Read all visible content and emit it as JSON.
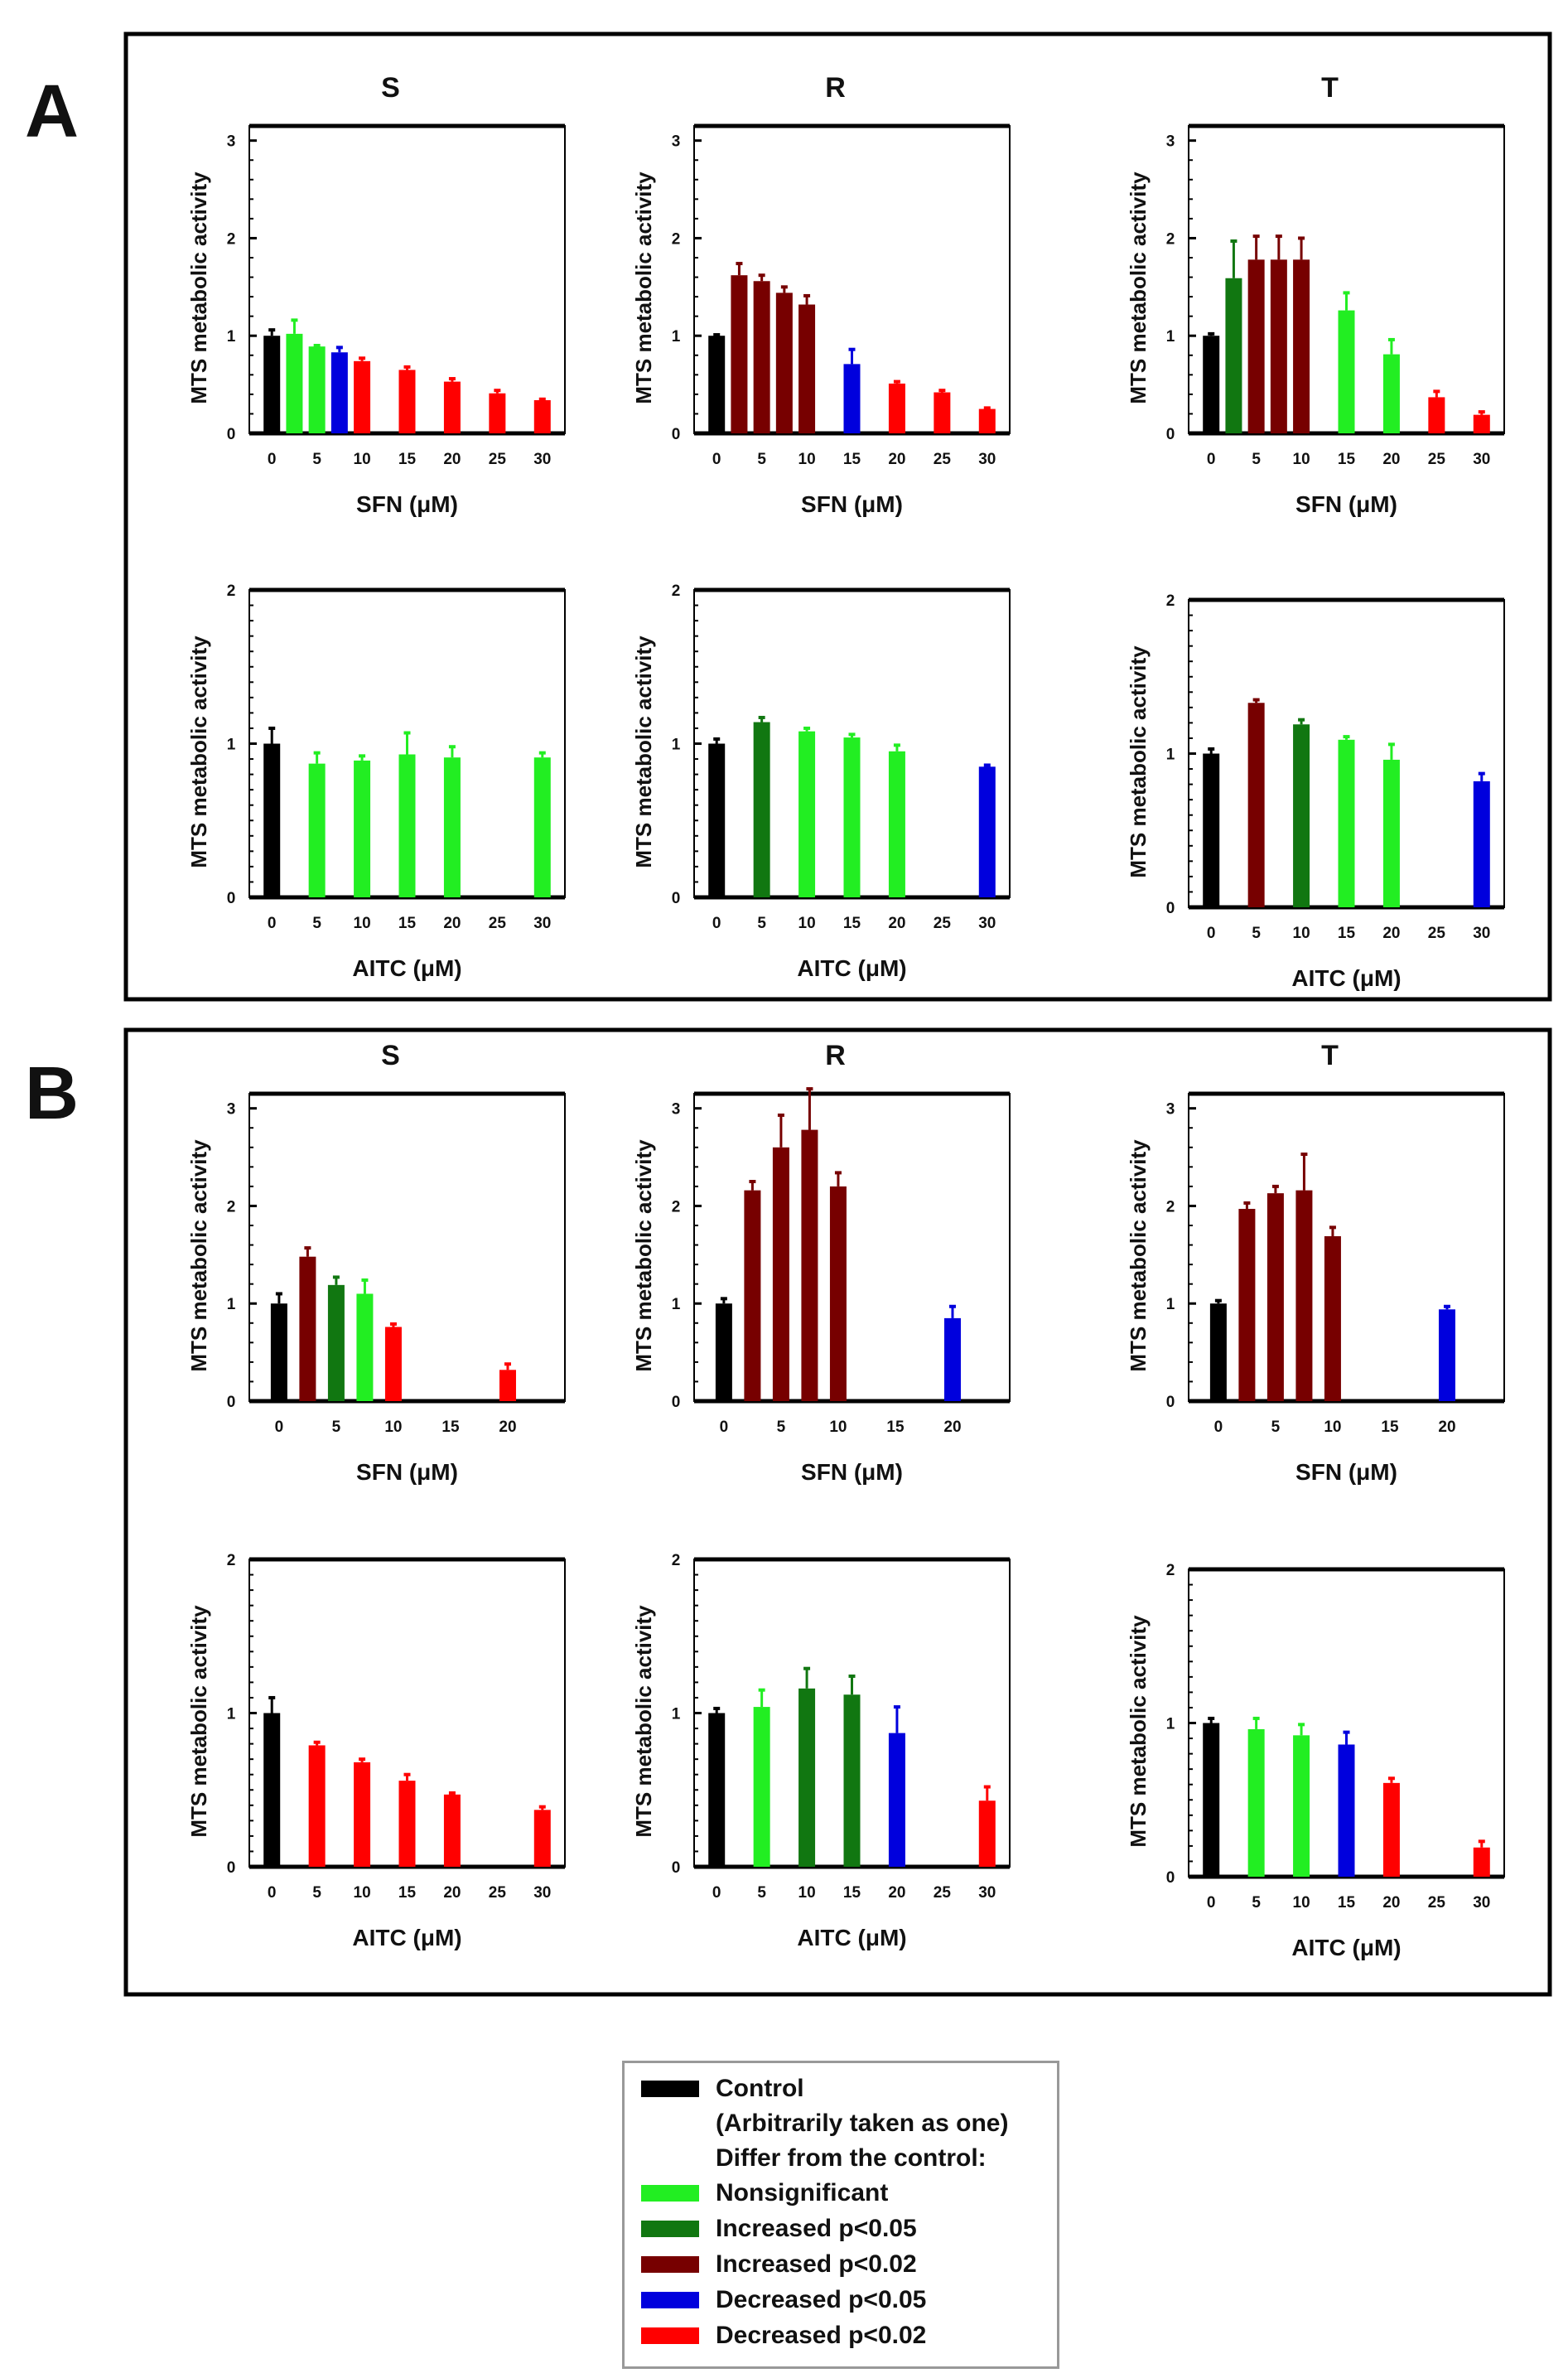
{
  "panel_labels": [
    "A",
    "B"
  ],
  "legend": {
    "title_lines": [
      "Control",
      "(Arbitrarily taken as one)",
      "Differ from the control:"
    ],
    "items": [
      {
        "key": "control",
        "label": "Control",
        "color": "#000000"
      },
      {
        "key": "ns",
        "label": "Nonsignificant",
        "color": "#22ee22"
      },
      {
        "key": "inc05",
        "label": "Increased p<0.05",
        "color": "#117711"
      },
      {
        "key": "inc02",
        "label": "Increased p<0.02",
        "color": "#770000"
      },
      {
        "key": "dec05",
        "label": "Decreased p<0.05",
        "color": "#0000dd"
      },
      {
        "key": "dec02",
        "label": "Decreased p<0.02",
        "color": "#ff0000"
      }
    ]
  },
  "chart_data": [
    {
      "type": "bar",
      "group": "A",
      "title": "S",
      "xlabel": "SFN (μM)",
      "ylabel": "MTS metabolic activity",
      "ylim": [
        0,
        3.15
      ],
      "yticks": [
        "0",
        "1",
        "2",
        "3"
      ],
      "xlim": [
        -2.5,
        32.5
      ],
      "xticks": [
        "0",
        "5",
        "10",
        "15",
        "20",
        "25",
        "30"
      ],
      "bars": [
        {
          "x": 0,
          "value": 1.0,
          "err": 0.06,
          "category": "control"
        },
        {
          "x": 2.5,
          "value": 1.02,
          "err": 0.14,
          "category": "ns"
        },
        {
          "x": 5,
          "value": 0.89,
          "err": 0.01,
          "category": "ns"
        },
        {
          "x": 7.5,
          "value": 0.83,
          "err": 0.05,
          "category": "dec05"
        },
        {
          "x": 10,
          "value": 0.74,
          "err": 0.03,
          "category": "dec02"
        },
        {
          "x": 15,
          "value": 0.65,
          "err": 0.03,
          "category": "dec02"
        },
        {
          "x": 20,
          "value": 0.53,
          "err": 0.03,
          "category": "dec02"
        },
        {
          "x": 25,
          "value": 0.41,
          "err": 0.03,
          "category": "dec02"
        },
        {
          "x": 30,
          "value": 0.34,
          "err": 0.01,
          "category": "dec02"
        }
      ]
    },
    {
      "type": "bar",
      "group": "A",
      "title": "R",
      "xlabel": "SFN (μM)",
      "ylabel": "MTS metabolic activity",
      "ylim": [
        0,
        3.15
      ],
      "yticks": [
        "0",
        "1",
        "2",
        "3"
      ],
      "xlim": [
        -2.5,
        32.5
      ],
      "xticks": [
        "0",
        "5",
        "10",
        "15",
        "20",
        "25",
        "30"
      ],
      "bars": [
        {
          "x": 0,
          "value": 1.0,
          "err": 0.01,
          "category": "control"
        },
        {
          "x": 2.5,
          "value": 1.62,
          "err": 0.12,
          "category": "inc02"
        },
        {
          "x": 5,
          "value": 1.56,
          "err": 0.06,
          "category": "inc02"
        },
        {
          "x": 7.5,
          "value": 1.44,
          "err": 0.06,
          "category": "inc02"
        },
        {
          "x": 10,
          "value": 1.32,
          "err": 0.09,
          "category": "inc02"
        },
        {
          "x": 15,
          "value": 0.71,
          "err": 0.15,
          "category": "dec05"
        },
        {
          "x": 20,
          "value": 0.51,
          "err": 0.02,
          "category": "dec02"
        },
        {
          "x": 25,
          "value": 0.42,
          "err": 0.02,
          "category": "dec02"
        },
        {
          "x": 30,
          "value": 0.25,
          "err": 0.01,
          "category": "dec02"
        }
      ]
    },
    {
      "type": "bar",
      "group": "A",
      "title": "T",
      "xlabel": "SFN (μM)",
      "ylabel": "MTS metabolic activity",
      "ylim": [
        0,
        3.15
      ],
      "yticks": [
        "0",
        "1",
        "2",
        "3"
      ],
      "xlim": [
        -2.5,
        32.5
      ],
      "xticks": [
        "0",
        "5",
        "10",
        "15",
        "20",
        "25",
        "30"
      ],
      "bars": [
        {
          "x": 0,
          "value": 1.0,
          "err": 0.02,
          "category": "control"
        },
        {
          "x": 2.5,
          "value": 1.59,
          "err": 0.38,
          "category": "inc05"
        },
        {
          "x": 5,
          "value": 1.78,
          "err": 0.24,
          "category": "inc02"
        },
        {
          "x": 7.5,
          "value": 1.78,
          "err": 0.24,
          "category": "inc02"
        },
        {
          "x": 10,
          "value": 1.78,
          "err": 0.22,
          "category": "inc02"
        },
        {
          "x": 15,
          "value": 1.26,
          "err": 0.18,
          "category": "ns"
        },
        {
          "x": 20,
          "value": 0.81,
          "err": 0.15,
          "category": "ns"
        },
        {
          "x": 25,
          "value": 0.37,
          "err": 0.06,
          "category": "dec02"
        },
        {
          "x": 30,
          "value": 0.19,
          "err": 0.03,
          "category": "dec02"
        }
      ]
    },
    {
      "type": "bar",
      "group": "A",
      "title": "",
      "xlabel": "AITC (μM)",
      "ylabel": "MTS metabolic activity",
      "ylim": [
        0,
        2
      ],
      "yticks": [
        "0",
        "1",
        "2"
      ],
      "xlim": [
        -2.5,
        32.5
      ],
      "xticks": [
        "0",
        "5",
        "10",
        "15",
        "20",
        "25",
        "30"
      ],
      "bars": [
        {
          "x": 0,
          "value": 1.0,
          "err": 0.1,
          "category": "control"
        },
        {
          "x": 5,
          "value": 0.87,
          "err": 0.07,
          "category": "ns"
        },
        {
          "x": 10,
          "value": 0.89,
          "err": 0.03,
          "category": "ns"
        },
        {
          "x": 15,
          "value": 0.93,
          "err": 0.14,
          "category": "ns"
        },
        {
          "x": 20,
          "value": 0.91,
          "err": 0.07,
          "category": "ns"
        },
        {
          "x": 30,
          "value": 0.91,
          "err": 0.03,
          "category": "ns"
        }
      ]
    },
    {
      "type": "bar",
      "group": "A",
      "title": "",
      "xlabel": "AITC (μM)",
      "ylabel": "MTS metabolic activity",
      "ylim": [
        0,
        2
      ],
      "yticks": [
        "0",
        "1",
        "2"
      ],
      "xlim": [
        -2.5,
        32.5
      ],
      "xticks": [
        "0",
        "5",
        "10",
        "15",
        "20",
        "25",
        "30"
      ],
      "bars": [
        {
          "x": 0,
          "value": 1.0,
          "err": 0.03,
          "category": "control"
        },
        {
          "x": 5,
          "value": 1.14,
          "err": 0.03,
          "category": "inc05"
        },
        {
          "x": 10,
          "value": 1.08,
          "err": 0.02,
          "category": "ns"
        },
        {
          "x": 15,
          "value": 1.04,
          "err": 0.02,
          "category": "ns"
        },
        {
          "x": 20,
          "value": 0.95,
          "err": 0.04,
          "category": "ns"
        },
        {
          "x": 30,
          "value": 0.85,
          "err": 0.01,
          "category": "dec05"
        }
      ]
    },
    {
      "type": "bar",
      "group": "A",
      "title": "",
      "xlabel": "AITC (μM)",
      "ylabel": "MTS metabolic activity",
      "ylim": [
        0,
        2
      ],
      "yticks": [
        "0",
        "1",
        "2"
      ],
      "xlim": [
        -2.5,
        32.5
      ],
      "xticks": [
        "0",
        "5",
        "10",
        "15",
        "20",
        "25",
        "30"
      ],
      "bars": [
        {
          "x": 0,
          "value": 1.0,
          "err": 0.03,
          "category": "control"
        },
        {
          "x": 5,
          "value": 1.33,
          "err": 0.02,
          "category": "inc02"
        },
        {
          "x": 10,
          "value": 1.19,
          "err": 0.03,
          "category": "inc05"
        },
        {
          "x": 15,
          "value": 1.09,
          "err": 0.02,
          "category": "ns"
        },
        {
          "x": 20,
          "value": 0.96,
          "err": 0.1,
          "category": "ns"
        },
        {
          "x": 30,
          "value": 0.82,
          "err": 0.05,
          "category": "dec05"
        }
      ]
    },
    {
      "type": "bar",
      "group": "B",
      "title": "S",
      "xlabel": "SFN (μM)",
      "ylabel": "MTS metabolic activity",
      "ylim": [
        0,
        3.15
      ],
      "yticks": [
        "0",
        "1",
        "2",
        "3"
      ],
      "xlim": [
        -2.6,
        25
      ],
      "xticks": [
        "0",
        "5",
        "10",
        "15",
        "20"
      ],
      "bars": [
        {
          "x": 0,
          "value": 1.0,
          "err": 0.1,
          "category": "control"
        },
        {
          "x": 2.5,
          "value": 1.48,
          "err": 0.09,
          "category": "inc02"
        },
        {
          "x": 5,
          "value": 1.19,
          "err": 0.08,
          "category": "inc05"
        },
        {
          "x": 7.5,
          "value": 1.1,
          "err": 0.14,
          "category": "ns"
        },
        {
          "x": 10,
          "value": 0.76,
          "err": 0.03,
          "category": "dec02"
        },
        {
          "x": 20,
          "value": 0.32,
          "err": 0.06,
          "category": "dec02"
        }
      ]
    },
    {
      "type": "bar",
      "group": "B",
      "title": "R",
      "xlabel": "SFN (μM)",
      "ylabel": "MTS metabolic activity",
      "ylim": [
        0,
        3.15
      ],
      "yticks": [
        "0",
        "1",
        "2",
        "3"
      ],
      "xlim": [
        -2.6,
        25
      ],
      "xticks": [
        "0",
        "5",
        "10",
        "15",
        "20"
      ],
      "bars": [
        {
          "x": 0,
          "value": 1.0,
          "err": 0.05,
          "category": "control"
        },
        {
          "x": 2.5,
          "value": 2.16,
          "err": 0.09,
          "category": "inc02"
        },
        {
          "x": 5,
          "value": 2.6,
          "err": 0.33,
          "category": "inc02"
        },
        {
          "x": 7.5,
          "value": 2.78,
          "err": 0.42,
          "category": "inc02"
        },
        {
          "x": 10,
          "value": 2.2,
          "err": 0.14,
          "category": "inc02"
        },
        {
          "x": 20,
          "value": 0.85,
          "err": 0.12,
          "category": "dec05"
        }
      ]
    },
    {
      "type": "bar",
      "group": "B",
      "title": "T",
      "xlabel": "SFN (μM)",
      "ylabel": "MTS metabolic activity",
      "ylim": [
        0,
        3.15
      ],
      "yticks": [
        "0",
        "1",
        "2",
        "3"
      ],
      "xlim": [
        -2.6,
        25
      ],
      "xticks": [
        "0",
        "5",
        "10",
        "15",
        "20"
      ],
      "bars": [
        {
          "x": 0,
          "value": 1.0,
          "err": 0.03,
          "category": "control"
        },
        {
          "x": 2.5,
          "value": 1.97,
          "err": 0.06,
          "category": "inc02"
        },
        {
          "x": 5,
          "value": 2.13,
          "err": 0.07,
          "category": "inc02"
        },
        {
          "x": 7.5,
          "value": 2.16,
          "err": 0.37,
          "category": "inc02"
        },
        {
          "x": 10,
          "value": 1.69,
          "err": 0.09,
          "category": "inc02"
        },
        {
          "x": 20,
          "value": 0.94,
          "err": 0.03,
          "category": "dec05"
        }
      ]
    },
    {
      "type": "bar",
      "group": "B",
      "title": "",
      "xlabel": "AITC (μM)",
      "ylabel": "MTS metabolic activity",
      "ylim": [
        0,
        2
      ],
      "yticks": [
        "0",
        "1",
        "2"
      ],
      "xlim": [
        -2.5,
        32.5
      ],
      "xticks": [
        "0",
        "5",
        "10",
        "15",
        "20",
        "25",
        "30"
      ],
      "bars": [
        {
          "x": 0,
          "value": 1.0,
          "err": 0.1,
          "category": "control"
        },
        {
          "x": 5,
          "value": 0.79,
          "err": 0.02,
          "category": "dec02"
        },
        {
          "x": 10,
          "value": 0.68,
          "err": 0.02,
          "category": "dec02"
        },
        {
          "x": 15,
          "value": 0.56,
          "err": 0.04,
          "category": "dec02"
        },
        {
          "x": 20,
          "value": 0.47,
          "err": 0.01,
          "category": "dec02"
        },
        {
          "x": 30,
          "value": 0.37,
          "err": 0.02,
          "category": "dec02"
        }
      ]
    },
    {
      "type": "bar",
      "group": "B",
      "title": "",
      "xlabel": "AITC (μM)",
      "ylabel": "MTS metabolic activity",
      "ylim": [
        0,
        2
      ],
      "yticks": [
        "0",
        "1",
        "2"
      ],
      "xlim": [
        -2.5,
        32.5
      ],
      "xticks": [
        "0",
        "5",
        "10",
        "15",
        "20",
        "25",
        "30"
      ],
      "bars": [
        {
          "x": 0,
          "value": 1.0,
          "err": 0.03,
          "category": "control"
        },
        {
          "x": 5,
          "value": 1.04,
          "err": 0.11,
          "category": "ns"
        },
        {
          "x": 10,
          "value": 1.16,
          "err": 0.13,
          "category": "inc05"
        },
        {
          "x": 15,
          "value": 1.12,
          "err": 0.12,
          "category": "inc05"
        },
        {
          "x": 20,
          "value": 0.87,
          "err": 0.17,
          "category": "dec05"
        },
        {
          "x": 30,
          "value": 0.43,
          "err": 0.09,
          "category": "dec02"
        }
      ]
    },
    {
      "type": "bar",
      "group": "B",
      "title": "",
      "xlabel": "AITC (μM)",
      "ylabel": "MTS metabolic activity",
      "ylim": [
        0,
        2
      ],
      "yticks": [
        "0",
        "1",
        "2"
      ],
      "xlim": [
        -2.5,
        32.5
      ],
      "xticks": [
        "0",
        "5",
        "10",
        "15",
        "20",
        "25",
        "30"
      ],
      "bars": [
        {
          "x": 0,
          "value": 1.0,
          "err": 0.03,
          "category": "control"
        },
        {
          "x": 5,
          "value": 0.96,
          "err": 0.07,
          "category": "ns"
        },
        {
          "x": 10,
          "value": 0.92,
          "err": 0.07,
          "category": "ns"
        },
        {
          "x": 15,
          "value": 0.86,
          "err": 0.08,
          "category": "dec05"
        },
        {
          "x": 20,
          "value": 0.61,
          "err": 0.03,
          "category": "dec02"
        },
        {
          "x": 30,
          "value": 0.19,
          "err": 0.04,
          "category": "dec02"
        }
      ]
    }
  ]
}
